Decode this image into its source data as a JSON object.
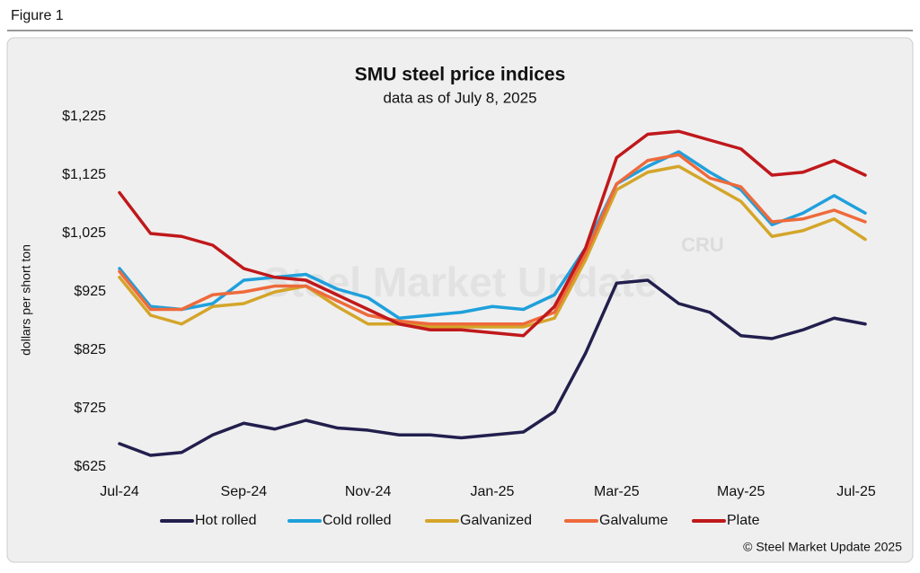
{
  "header": "Figure 1",
  "chart_data": {
    "type": "line",
    "title": "SMU steel price indices",
    "subtitle": "data as of July 8, 2025",
    "ylabel": "dollars per short ton",
    "watermark": "Steel Market Update",
    "watermark_logo": "CRU",
    "source": "© Steel Market Update 2025",
    "categories": [
      "Jul-24",
      null,
      null,
      null,
      "Sep-24",
      null,
      null,
      null,
      "Nov-24",
      null,
      null,
      null,
      "Jan-25",
      null,
      null,
      null,
      "Mar-25",
      null,
      null,
      null,
      "May-25",
      null,
      null,
      null,
      "Jul-25"
    ],
    "ylim": [
      625,
      1225
    ],
    "yticks": [
      {
        "value": 625,
        "label": "$625"
      },
      {
        "value": 725,
        "label": "$725"
      },
      {
        "value": 825,
        "label": "$825"
      },
      {
        "value": 925,
        "label": "$925"
      },
      {
        "value": 1025,
        "label": "$1,025"
      },
      {
        "value": 1125,
        "label": "$1,125"
      },
      {
        "value": 1225,
        "label": "$1,225"
      }
    ],
    "series": [
      {
        "name": "Hot rolled",
        "color": "#221f4d",
        "values": [
          665,
          645,
          650,
          680,
          700,
          690,
          705,
          692,
          688,
          680,
          680,
          675,
          680,
          685,
          720,
          820,
          940,
          945,
          905,
          890,
          850,
          845,
          860,
          880,
          870
        ]
      },
      {
        "name": "Cold rolled",
        "color": "#1fa0dc",
        "values": [
          965,
          900,
          895,
          905,
          945,
          950,
          955,
          930,
          915,
          880,
          885,
          890,
          900,
          895,
          920,
          1000,
          1110,
          1140,
          1165,
          1130,
          1100,
          1040,
          1060,
          1090,
          1060
        ]
      },
      {
        "name": "Galvanized",
        "color": "#d4a52a",
        "values": [
          950,
          885,
          870,
          900,
          905,
          925,
          935,
          900,
          870,
          870,
          865,
          865,
          865,
          865,
          880,
          980,
          1100,
          1130,
          1140,
          1110,
          1080,
          1020,
          1030,
          1050,
          1015
        ]
      },
      {
        "name": "Galvalume",
        "color": "#ee6a3b",
        "values": [
          960,
          895,
          895,
          920,
          925,
          935,
          935,
          910,
          885,
          875,
          870,
          870,
          870,
          870,
          890,
          990,
          1110,
          1150,
          1160,
          1120,
          1105,
          1045,
          1050,
          1065,
          1045
        ]
      },
      {
        "name": "Plate",
        "color": "#c0181b",
        "values": [
          1095,
          1025,
          1020,
          1005,
          965,
          950,
          945,
          920,
          895,
          870,
          860,
          860,
          855,
          850,
          900,
          1000,
          1155,
          1195,
          1200,
          1185,
          1170,
          1125,
          1130,
          1150,
          1125
        ]
      }
    ]
  }
}
